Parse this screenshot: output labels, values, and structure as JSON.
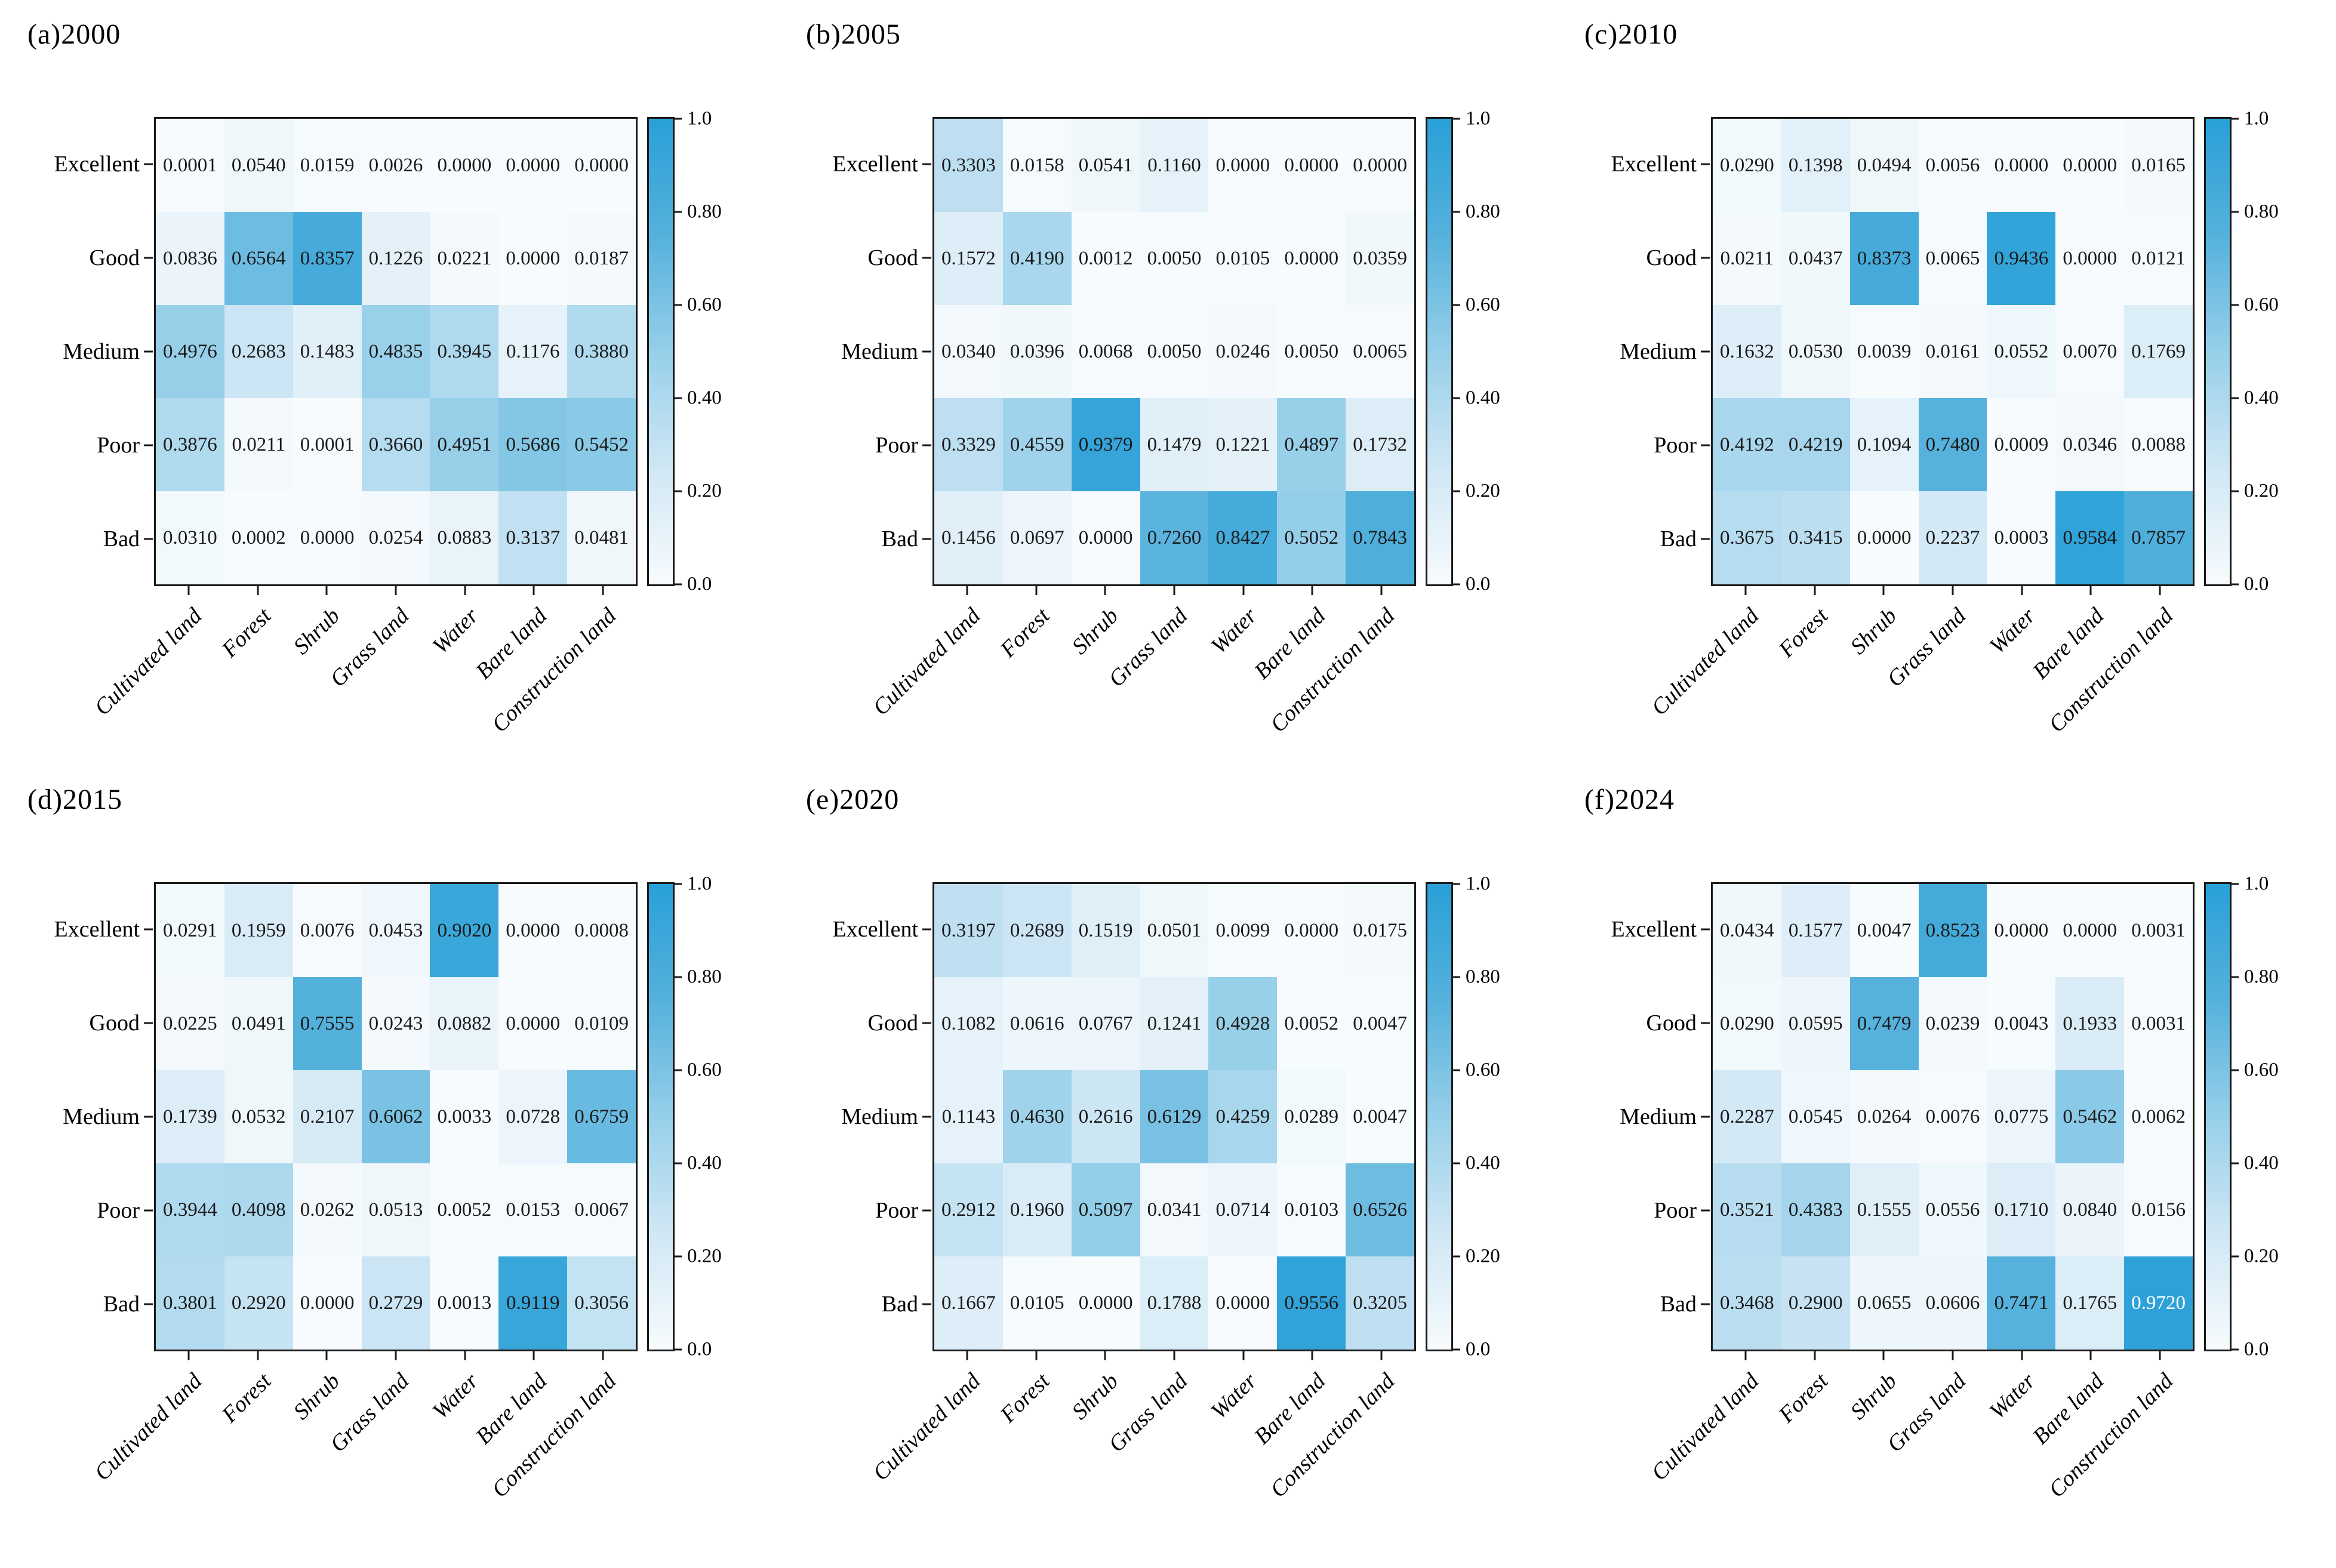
{
  "style": {
    "background": "#ffffff",
    "axis_color": "#1a1a1a",
    "cell_text_color": "#1a1a1a",
    "cell_text_color_high": "#ffffff",
    "white_text_threshold": 0.965,
    "colormap_stops": [
      [
        0,
        "#f7fbfd"
      ],
      [
        0.25,
        "#d0e7f5"
      ],
      [
        0.5,
        "#96cfe9"
      ],
      [
        0.75,
        "#55b1dc"
      ],
      [
        1,
        "#29a0d8"
      ]
    ]
  },
  "colorbar": {
    "ticks_top_to_bottom": [
      "1.0",
      "0.80",
      "0.60",
      "0.40",
      "0.20",
      "0.0"
    ],
    "min": 0,
    "max": 1
  },
  "row_labels": [
    "Excellent",
    "Good",
    "Medium",
    "Poor",
    "Bad"
  ],
  "col_labels": [
    "Cultivated land",
    "Forest",
    "Shrub",
    "Grass land",
    "Water",
    "Bare land",
    "Construction land"
  ],
  "chart_data": [
    {
      "type": "heatmap",
      "title": "(a)2000",
      "rows": [
        "Excellent",
        "Good",
        "Medium",
        "Poor",
        "Bad"
      ],
      "columns": [
        "Cultivated land",
        "Forest",
        "Shrub",
        "Grass land",
        "Water",
        "Bare land",
        "Construction land"
      ],
      "vrange": [
        0,
        1
      ],
      "values": [
        [
          0.0001,
          0.054,
          0.0159,
          0.0026,
          0.0,
          0.0,
          0.0
        ],
        [
          0.0836,
          0.6564,
          0.8357,
          0.1226,
          0.0221,
          0.0,
          0.0187
        ],
        [
          0.4976,
          0.2683,
          0.1483,
          0.4835,
          0.3945,
          0.1176,
          0.388
        ],
        [
          0.3876,
          0.0211,
          0.0001,
          0.366,
          0.4951,
          0.5686,
          0.5452
        ],
        [
          0.031,
          0.0002,
          0.0,
          0.0254,
          0.0883,
          0.3137,
          0.0481
        ]
      ]
    },
    {
      "type": "heatmap",
      "title": "(b)2005",
      "rows": [
        "Excellent",
        "Good",
        "Medium",
        "Poor",
        "Bad"
      ],
      "columns": [
        "Cultivated land",
        "Forest",
        "Shrub",
        "Grass land",
        "Water",
        "Bare land",
        "Construction land"
      ],
      "vrange": [
        0,
        1
      ],
      "values": [
        [
          0.3303,
          0.0158,
          0.0541,
          0.116,
          0.0,
          0.0,
          0.0
        ],
        [
          0.1572,
          0.419,
          0.0012,
          0.005,
          0.0105,
          0.0,
          0.0359
        ],
        [
          0.034,
          0.0396,
          0.0068,
          0.005,
          0.0246,
          0.005,
          0.0065
        ],
        [
          0.3329,
          0.4559,
          0.9379,
          0.1479,
          0.1221,
          0.4897,
          0.1732
        ],
        [
          0.1456,
          0.0697,
          0.0,
          0.726,
          0.8427,
          0.5052,
          0.7843
        ]
      ]
    },
    {
      "type": "heatmap",
      "title": "(c)2010",
      "rows": [
        "Excellent",
        "Good",
        "Medium",
        "Poor",
        "Bad"
      ],
      "columns": [
        "Cultivated land",
        "Forest",
        "Shrub",
        "Grass land",
        "Water",
        "Bare land",
        "Construction land"
      ],
      "vrange": [
        0,
        1
      ],
      "values": [
        [
          0.029,
          0.1398,
          0.0494,
          0.0056,
          0.0,
          0.0,
          0.0165
        ],
        [
          0.0211,
          0.0437,
          0.8373,
          0.0065,
          0.9436,
          0.0,
          0.0121
        ],
        [
          0.1632,
          0.053,
          0.0039,
          0.0161,
          0.0552,
          0.007,
          0.1769
        ],
        [
          0.4192,
          0.4219,
          0.1094,
          0.748,
          0.0009,
          0.0346,
          0.0088
        ],
        [
          0.3675,
          0.3415,
          0.0,
          0.2237,
          0.0003,
          0.9584,
          0.7857
        ]
      ]
    },
    {
      "type": "heatmap",
      "title": "(d)2015",
      "rows": [
        "Excellent",
        "Good",
        "Medium",
        "Poor",
        "Bad"
      ],
      "columns": [
        "Cultivated land",
        "Forest",
        "Shrub",
        "Grass land",
        "Water",
        "Bare land",
        "Construction land"
      ],
      "vrange": [
        0,
        1
      ],
      "values": [
        [
          0.0291,
          0.1959,
          0.0076,
          0.0453,
          0.902,
          0.0,
          0.0008
        ],
        [
          0.0225,
          0.0491,
          0.7555,
          0.0243,
          0.0882,
          0.0,
          0.0109
        ],
        [
          0.1739,
          0.0532,
          0.2107,
          0.6062,
          0.0033,
          0.0728,
          0.6759
        ],
        [
          0.3944,
          0.4098,
          0.0262,
          0.0513,
          0.0052,
          0.0153,
          0.0067
        ],
        [
          0.3801,
          0.292,
          0.0,
          0.2729,
          0.0013,
          0.9119,
          0.3056
        ]
      ]
    },
    {
      "type": "heatmap",
      "title": "(e)2020",
      "rows": [
        "Excellent",
        "Good",
        "Medium",
        "Poor",
        "Bad"
      ],
      "columns": [
        "Cultivated land",
        "Forest",
        "Shrub",
        "Grass land",
        "Water",
        "Bare land",
        "Construction land"
      ],
      "vrange": [
        0,
        1
      ],
      "values": [
        [
          0.3197,
          0.2689,
          0.1519,
          0.0501,
          0.0099,
          0.0,
          0.0175
        ],
        [
          0.1082,
          0.0616,
          0.0767,
          0.1241,
          0.4928,
          0.0052,
          0.0047
        ],
        [
          0.1143,
          0.463,
          0.2616,
          0.6129,
          0.4259,
          0.0289,
          0.0047
        ],
        [
          0.2912,
          0.196,
          0.5097,
          0.0341,
          0.0714,
          0.0103,
          0.6526
        ],
        [
          0.1667,
          0.0105,
          0.0,
          0.1788,
          0.0,
          0.9556,
          0.3205
        ]
      ]
    },
    {
      "type": "heatmap",
      "title": "(f)2024",
      "rows": [
        "Excellent",
        "Good",
        "Medium",
        "Poor",
        "Bad"
      ],
      "columns": [
        "Cultivated land",
        "Forest",
        "Shrub",
        "Grass land",
        "Water",
        "Bare land",
        "Construction land"
      ],
      "vrange": [
        0,
        1
      ],
      "values": [
        [
          0.0434,
          0.1577,
          0.0047,
          0.8523,
          0.0,
          0.0,
          0.0031
        ],
        [
          0.029,
          0.0595,
          0.7479,
          0.0239,
          0.0043,
          0.1933,
          0.0031
        ],
        [
          0.2287,
          0.0545,
          0.0264,
          0.0076,
          0.0775,
          0.5462,
          0.0062
        ],
        [
          0.3521,
          0.4383,
          0.1555,
          0.0556,
          0.171,
          0.084,
          0.0156
        ],
        [
          0.3468,
          0.29,
          0.0655,
          0.0606,
          0.7471,
          0.1765,
          0.972
        ]
      ]
    }
  ]
}
